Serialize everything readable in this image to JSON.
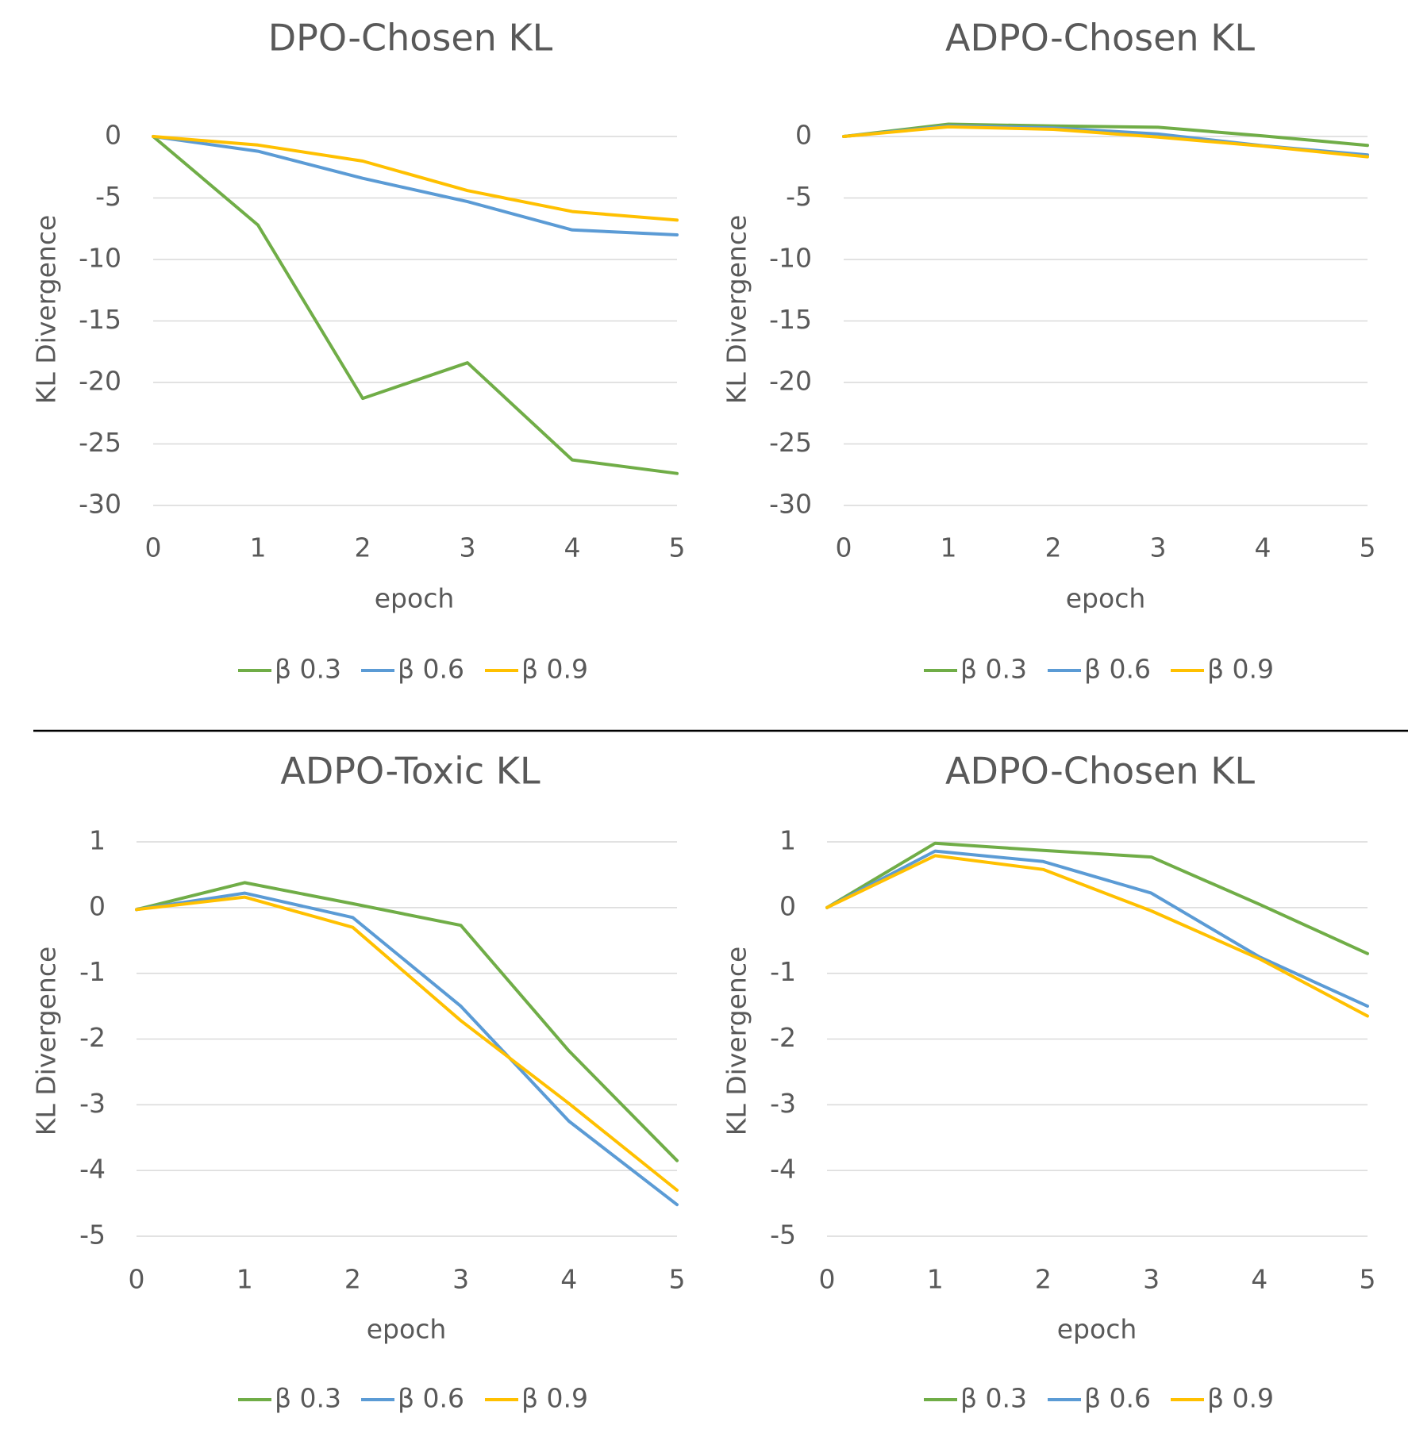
{
  "chart_data": [
    {
      "type": "line",
      "title": "DPO-Chosen KL",
      "xlabel": "epoch",
      "ylabel": "KL Divergence",
      "x": [
        0,
        1,
        2,
        3,
        4,
        5
      ],
      "x_tick_labels": [
        "0",
        "1",
        "2",
        "3",
        "4",
        "5"
      ],
      "ylim": [
        -30,
        0
      ],
      "y_ticks": [
        0,
        -5,
        -10,
        -15,
        -20,
        -25,
        -30
      ],
      "y_tick_labels": [
        "0",
        "-5",
        "-10",
        "-15",
        "-20",
        "-25",
        "-30"
      ],
      "grid": true,
      "legend_position": "bottom",
      "series": [
        {
          "name": "β 0.3",
          "color": "#70ad47",
          "values": [
            0,
            -7.2,
            -21.3,
            -18.4,
            -26.3,
            -27.4
          ]
        },
        {
          "name": "β 0.6",
          "color": "#5b9bd5",
          "values": [
            0,
            -1.2,
            -3.4,
            -5.3,
            -7.6,
            -8.0
          ]
        },
        {
          "name": "β 0.9",
          "color": "#ffc000",
          "values": [
            0,
            -0.7,
            -2.0,
            -4.4,
            -6.1,
            -6.8
          ]
        }
      ]
    },
    {
      "type": "line",
      "title": "ADPO-Chosen KL",
      "xlabel": "epoch",
      "ylabel": "KL Divergence",
      "x": [
        0,
        1,
        2,
        3,
        4,
        5
      ],
      "x_tick_labels": [
        "0",
        "1",
        "2",
        "3",
        "4",
        "5"
      ],
      "ylim": [
        -30,
        0
      ],
      "y_ticks": [
        0,
        -5,
        -10,
        -15,
        -20,
        -25,
        -30
      ],
      "y_tick_labels": [
        "0",
        "-5",
        "-10",
        "-15",
        "-20",
        "-25",
        "-30"
      ],
      "grid": true,
      "legend_position": "bottom",
      "series": [
        {
          "name": "β 0.3",
          "color": "#70ad47",
          "values": [
            0,
            1.0,
            0.85,
            0.75,
            0.05,
            -0.72
          ]
        },
        {
          "name": "β 0.6",
          "color": "#5b9bd5",
          "values": [
            0,
            0.85,
            0.7,
            0.2,
            -0.75,
            -1.5
          ]
        },
        {
          "name": "β 0.9",
          "color": "#ffc000",
          "values": [
            0,
            0.78,
            0.58,
            -0.05,
            -0.78,
            -1.65
          ]
        }
      ]
    },
    {
      "type": "line",
      "title": "ADPO-Toxic KL",
      "xlabel": "epoch",
      "ylabel": "KL Divergence",
      "x": [
        0,
        1,
        2,
        3,
        4,
        5
      ],
      "x_tick_labels": [
        "0",
        "1",
        "2",
        "3",
        "4",
        "5"
      ],
      "ylim": [
        -5,
        1
      ],
      "y_ticks": [
        1,
        0,
        -1,
        -2,
        -3,
        -4,
        -5
      ],
      "y_tick_labels": [
        "1",
        "0",
        "-1",
        "-2",
        "-3",
        "-4",
        "-5"
      ],
      "grid": true,
      "legend_position": "bottom",
      "series": [
        {
          "name": "β 0.3",
          "color": "#70ad47",
          "values": [
            -0.03,
            0.38,
            0.06,
            -0.27,
            -2.18,
            -3.85
          ]
        },
        {
          "name": "β 0.6",
          "color": "#5b9bd5",
          "values": [
            -0.03,
            0.22,
            -0.15,
            -1.5,
            -3.25,
            -4.52
          ]
        },
        {
          "name": "β 0.9",
          "color": "#ffc000",
          "values": [
            -0.03,
            0.16,
            -0.3,
            -1.72,
            -2.98,
            -4.3
          ]
        }
      ]
    },
    {
      "type": "line",
      "title": "ADPO-Chosen KL",
      "xlabel": "epoch",
      "ylabel": "KL Divergence",
      "x": [
        0,
        1,
        2,
        3,
        4,
        5
      ],
      "x_tick_labels": [
        "0",
        "1",
        "2",
        "3",
        "4",
        "5"
      ],
      "ylim": [
        -5,
        1
      ],
      "y_ticks": [
        1,
        0,
        -1,
        -2,
        -3,
        -4,
        -5
      ],
      "y_tick_labels": [
        "1",
        "0",
        "-1",
        "-2",
        "-3",
        "-4",
        "-5"
      ],
      "grid": true,
      "legend_position": "bottom",
      "series": [
        {
          "name": "β 0.3",
          "color": "#70ad47",
          "values": [
            0,
            0.98,
            0.87,
            0.77,
            0.05,
            -0.7
          ]
        },
        {
          "name": "β 0.6",
          "color": "#5b9bd5",
          "values": [
            0,
            0.86,
            0.7,
            0.22,
            -0.75,
            -1.5
          ]
        },
        {
          "name": "β 0.9",
          "color": "#ffc000",
          "values": [
            0,
            0.79,
            0.58,
            -0.05,
            -0.78,
            -1.65
          ]
        }
      ]
    }
  ]
}
